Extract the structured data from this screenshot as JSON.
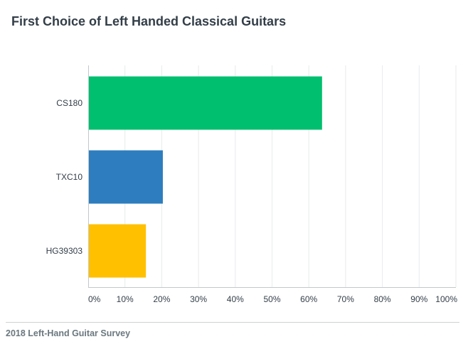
{
  "chart_data": {
    "type": "bar",
    "orientation": "horizontal",
    "title": "First Choice of Left Handed Classical Guitars",
    "categories": [
      "CS180",
      "TXC10",
      "HG39303"
    ],
    "values": [
      63.6,
      20.3,
      15.7
    ],
    "value_unit": "%",
    "xlim": [
      0,
      100
    ],
    "x_ticks": [
      "0%",
      "10%",
      "20%",
      "30%",
      "40%",
      "50%",
      "60%",
      "70%",
      "80%",
      "90%",
      "100%"
    ],
    "grid": true,
    "legend": "none",
    "bar_colors": [
      "#00bf6f",
      "#2d7dbf",
      "#ffc000"
    ],
    "xlabel": "",
    "ylabel": ""
  },
  "footer": {
    "label": "2018 Left-Hand Guitar Survey"
  },
  "colors": {
    "title": "#333e48",
    "grid": "#e8eaeb",
    "axis": "#c4c8ca",
    "tick_text": "#333e48",
    "footer_text": "#6b787f"
  }
}
